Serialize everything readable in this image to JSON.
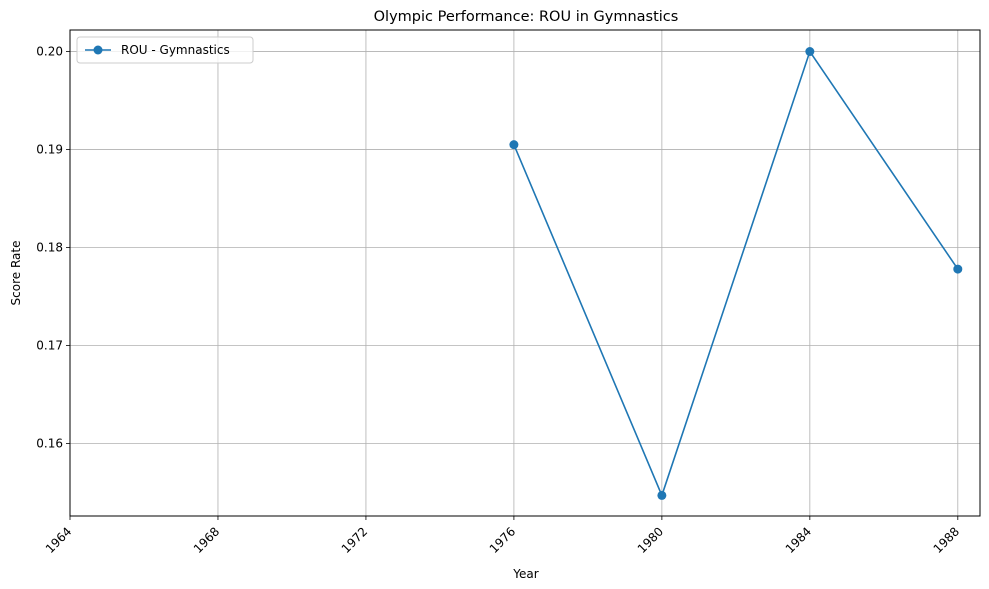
{
  "chart_data": {
    "type": "line",
    "title": "Olympic Performance: ROU in Gymnastics",
    "xlabel": "Year",
    "ylabel": "Score Rate",
    "x_ticks": [
      1964,
      1968,
      1972,
      1976,
      1980,
      1984,
      1988
    ],
    "x_tick_labels": [
      "1964",
      "1968",
      "1972",
      "1976",
      "1980",
      "1984",
      "1988"
    ],
    "y_ticks": [
      0.16,
      0.17,
      0.18,
      0.19,
      0.2
    ],
    "y_tick_labels": [
      "0.16",
      "0.17",
      "0.18",
      "0.19",
      "0.20"
    ],
    "xlim": [
      1964,
      1988.6
    ],
    "ylim": [
      0.1526,
      0.2022
    ],
    "grid": true,
    "legend_position": "top-left",
    "series": [
      {
        "name": "ROU - Gymnastics",
        "color": "#1f77b4",
        "marker": "circle",
        "x": [
          1976,
          1980,
          1984,
          1988
        ],
        "y": [
          0.1905,
          0.1547,
          0.2,
          0.1778
        ]
      }
    ]
  }
}
